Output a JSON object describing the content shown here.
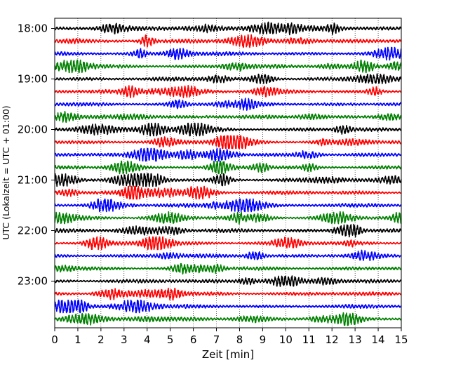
{
  "chart_data": {
    "type": "line",
    "title": "",
    "xlabel": "Zeit  [min]",
    "ylabel": "UTC (Lokalzeit = UTC + 01:00)",
    "xlim": [
      0,
      15
    ],
    "x_ticks": [
      "0",
      "1",
      "2",
      "3",
      "4",
      "5",
      "6",
      "7",
      "8",
      "9",
      "10",
      "11",
      "12",
      "13",
      "14",
      "15"
    ],
    "y_ticks": [
      "18:00",
      "19:00",
      "20:00",
      "21:00",
      "22:00",
      "23:00"
    ],
    "grid": "vertical dotted",
    "legend": "none",
    "trace_interval_min": 15,
    "first_trace": "18:00",
    "trace_count": 24,
    "colors": [
      "#000000",
      "#ff0000",
      "#0000ff",
      "#008000"
    ]
  }
}
